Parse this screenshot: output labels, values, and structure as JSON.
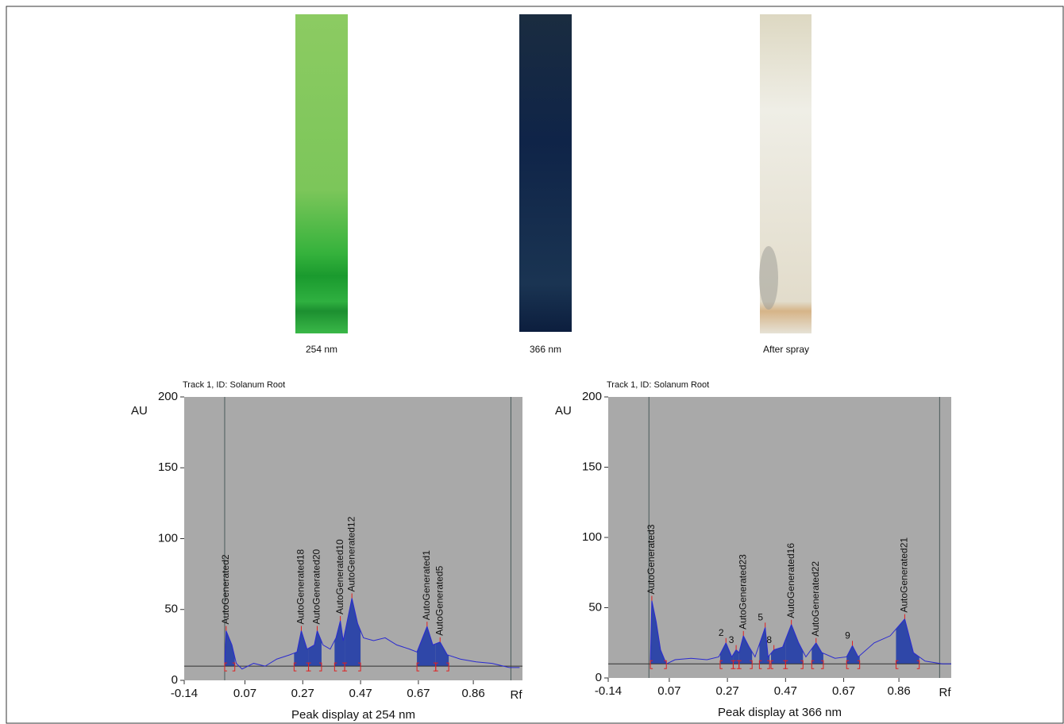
{
  "images": [
    {
      "caption": "254 nm"
    },
    {
      "caption": "366 nm"
    },
    {
      "caption": "After spray"
    }
  ],
  "chart_data": [
    {
      "type": "line",
      "title": "Track 1, ID: Solanum Root",
      "y_label": "AU",
      "x_label": "Peak display at 254 nm",
      "x_end_label": "Rf",
      "xlim": [
        -0.14,
        1.03
      ],
      "ylim": [
        0,
        200
      ],
      "xticks": [
        -0.14,
        0.07,
        0.27,
        0.47,
        0.67,
        0.86
      ],
      "yticks": [
        0,
        50,
        100,
        150,
        200
      ],
      "background": "#a9a9a9",
      "baseline": 10,
      "start_line": 0.0,
      "front_line": 0.99,
      "peak_color": "#2f47a8",
      "marker_color": "#e02020",
      "series": [
        {
          "color": "#2a2ad0",
          "x": [
            0.0,
            0.005,
            0.025,
            0.04,
            0.06,
            0.1,
            0.14,
            0.18,
            0.225,
            0.25,
            0.265,
            0.285,
            0.31,
            0.32,
            0.34,
            0.365,
            0.385,
            0.4,
            0.41,
            0.44,
            0.46,
            0.48,
            0.515,
            0.555,
            0.595,
            0.64,
            0.665,
            0.7,
            0.72,
            0.745,
            0.77,
            0.815,
            0.87,
            0.925,
            0.985,
            1.02
          ],
          "values": [
            12,
            35,
            25,
            12,
            8,
            12,
            10,
            15,
            18,
            20,
            35,
            22,
            25,
            35,
            25,
            22,
            30,
            42,
            28,
            58,
            40,
            30,
            28,
            30,
            25,
            22,
            20,
            38,
            25,
            27,
            18,
            15,
            13,
            12,
            9,
            9
          ]
        }
      ],
      "peaks": [
        {
          "label": "AutoGenerated2",
          "x": 0.005,
          "y": 35,
          "start": 0.0,
          "end": 0.035
        },
        {
          "label": "AutoGenerated18",
          "x": 0.265,
          "y": 35,
          "start": 0.24,
          "end": 0.29
        },
        {
          "label": "AutoGenerated20",
          "x": 0.32,
          "y": 35,
          "start": 0.29,
          "end": 0.335
        },
        {
          "label": "AutoGenerated10",
          "x": 0.4,
          "y": 42,
          "start": 0.38,
          "end": 0.415
        },
        {
          "label": "AutoGenerated12",
          "x": 0.44,
          "y": 58,
          "start": 0.415,
          "end": 0.47
        },
        {
          "label": "AutoGenerated1",
          "x": 0.7,
          "y": 38,
          "start": 0.665,
          "end": 0.73
        },
        {
          "label": "AutoGenerated5",
          "x": 0.745,
          "y": 27,
          "start": 0.73,
          "end": 0.775
        }
      ]
    },
    {
      "type": "line",
      "title": "Track 1, ID: Solanum Root",
      "y_label": "AU",
      "x_label": "Peak display at 366 nm",
      "x_end_label": "Rf",
      "xlim": [
        -0.14,
        1.04
      ],
      "ylim": [
        0,
        200
      ],
      "xticks": [
        -0.14,
        0.07,
        0.27,
        0.47,
        0.67,
        0.86
      ],
      "yticks": [
        0,
        50,
        100,
        150,
        200
      ],
      "background": "#a9a9a9",
      "baseline": 10,
      "start_line": 0.0,
      "front_line": 1.0,
      "peak_color": "#2f47a8",
      "marker_color": "#e02020",
      "series": [
        {
          "color": "#2a2ad0",
          "x": [
            0.005,
            0.01,
            0.025,
            0.04,
            0.06,
            0.09,
            0.145,
            0.2,
            0.24,
            0.265,
            0.285,
            0.3,
            0.31,
            0.325,
            0.345,
            0.365,
            0.4,
            0.41,
            0.43,
            0.46,
            0.49,
            0.515,
            0.54,
            0.575,
            0.595,
            0.64,
            0.68,
            0.7,
            0.72,
            0.775,
            0.83,
            0.88,
            0.91,
            0.95,
            1.01,
            1.04
          ],
          "values": [
            12,
            55,
            40,
            20,
            10,
            13,
            14,
            13,
            15,
            25,
            15,
            20,
            18,
            30,
            22,
            15,
            36,
            15,
            20,
            22,
            38,
            25,
            15,
            25,
            18,
            14,
            15,
            23,
            15,
            25,
            30,
            42,
            18,
            12,
            10,
            10
          ]
        }
      ],
      "peaks": [
        {
          "label": "AutoGenerated3",
          "x": 0.01,
          "y": 55,
          "start": 0.005,
          "end": 0.06
        },
        {
          "label": "2",
          "x": 0.265,
          "y": 25,
          "start": 0.245,
          "end": 0.29
        },
        {
          "label": "3",
          "x": 0.3,
          "y": 20,
          "start": 0.29,
          "end": 0.31
        },
        {
          "label": "AutoGenerated23",
          "x": 0.325,
          "y": 30,
          "start": 0.31,
          "end": 0.355
        },
        {
          "label": "5",
          "x": 0.4,
          "y": 36,
          "start": 0.38,
          "end": 0.415
        },
        {
          "label": "8",
          "x": 0.43,
          "y": 20,
          "start": 0.42,
          "end": 0.47
        },
        {
          "label": "AutoGenerated16",
          "x": 0.49,
          "y": 38,
          "start": 0.47,
          "end": 0.53
        },
        {
          "label": "AutoGenerated22",
          "x": 0.575,
          "y": 25,
          "start": 0.56,
          "end": 0.6
        },
        {
          "label": "9",
          "x": 0.7,
          "y": 23,
          "start": 0.68,
          "end": 0.725
        },
        {
          "label": "AutoGenerated21",
          "x": 0.88,
          "y": 42,
          "start": 0.85,
          "end": 0.93
        }
      ]
    }
  ]
}
